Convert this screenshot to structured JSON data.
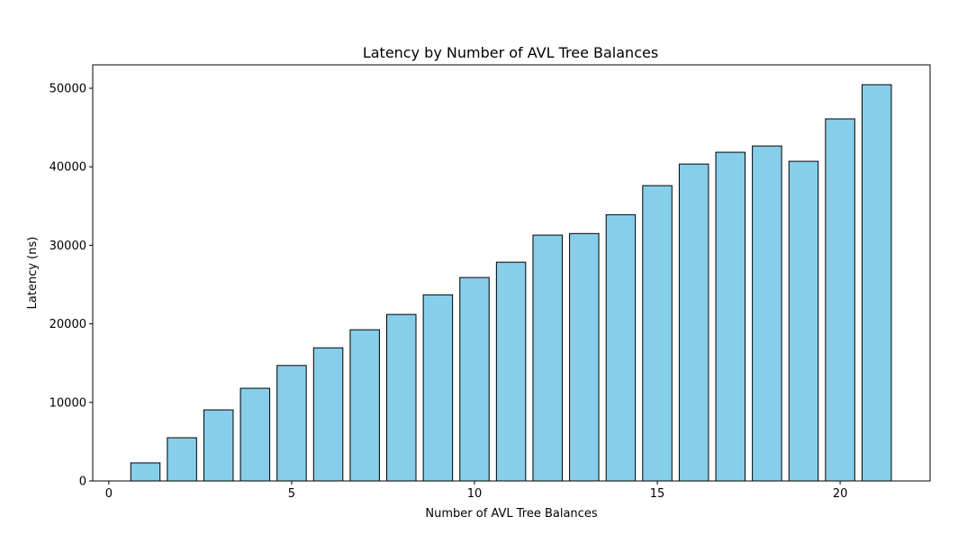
{
  "chart_data": {
    "type": "bar",
    "title": "Latency by Number of AVL Tree Balances",
    "xlabel": "Number of AVL Tree Balances",
    "ylabel": "Latency (ns)",
    "x": [
      1,
      2,
      3,
      4,
      5,
      6,
      7,
      8,
      9,
      10,
      11,
      12,
      13,
      14,
      15,
      16,
      17,
      18,
      19,
      20,
      21
    ],
    "values": [
      2300,
      5500,
      9050,
      11800,
      14700,
      16950,
      19250,
      21200,
      23700,
      25900,
      27850,
      31300,
      31500,
      33900,
      37600,
      40350,
      41850,
      42650,
      40700,
      46100,
      50450
    ],
    "xlim": [
      -0.44,
      22.46
    ],
    "ylim": [
      0,
      52980
    ],
    "xticks": [
      0,
      5,
      10,
      15,
      20
    ],
    "yticks": [
      0,
      10000,
      20000,
      30000,
      40000,
      50000
    ],
    "bar_color": "#87CEEB",
    "edge_color": "#000000",
    "grid": false,
    "legend": "none"
  }
}
